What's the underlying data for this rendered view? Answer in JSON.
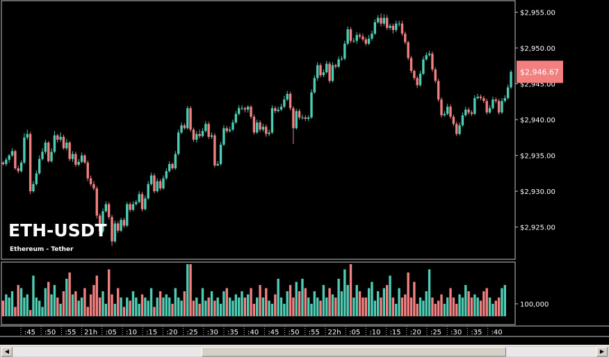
{
  "symbol": "ETH-USDT",
  "subtitle": "Ethereum - Tether",
  "colors": {
    "up": "#4ecdb4",
    "down": "#f28080",
    "frame": "#c8c8c8",
    "background": "#000000"
  },
  "chart_data": {
    "type": "candlestick",
    "price_axis": {
      "ticks": [
        "$2,955.00",
        "$2,950.00",
        "$2,945.00",
        "$2,940.00",
        "$2,935.00",
        "$2,930.00",
        "$2,925.00"
      ],
      "tick_values": [
        2955,
        2950,
        2945,
        2940,
        2935,
        2930,
        2925
      ],
      "ylim": [
        2920.6,
        2956.5
      ]
    },
    "last_price_label": "$2,946.67",
    "last_price": 2946.67,
    "volume_axis": {
      "ticks": [
        "100,000"
      ],
      "tick_values": [
        100000
      ]
    },
    "time_labels": [
      ":45",
      ":50",
      ":55",
      "21h",
      ":05",
      ":10",
      ":15",
      ":20",
      ":25",
      ":30",
      ":35",
      ":40",
      ":45",
      ":50",
      ":55",
      "22h",
      ":05",
      ":10",
      ":15",
      ":20",
      ":25",
      ":30",
      ":35",
      ":40"
    ],
    "ohlc": [
      [
        2934.0,
        2933.8,
        2934.2,
        2933.6
      ],
      [
        2933.8,
        2934.4,
        2934.7,
        2933.5
      ],
      [
        2934.4,
        2935.0,
        2935.2,
        2934.0
      ],
      [
        2935.0,
        2935.6,
        2936.0,
        2934.8
      ],
      [
        2935.6,
        2933.2,
        2935.8,
        2933.0
      ],
      [
        2933.2,
        2932.8,
        2933.6,
        2932.5
      ],
      [
        2932.8,
        2934.0,
        2934.3,
        2932.6
      ],
      [
        2934.0,
        2937.5,
        2938.1,
        2933.8
      ],
      [
        2937.5,
        2938.0,
        2938.6,
        2937.2
      ],
      [
        2938.0,
        2930.0,
        2938.3,
        2929.6
      ],
      [
        2930.0,
        2931.0,
        2931.4,
        2929.8
      ],
      [
        2931.0,
        2932.5,
        2932.9,
        2930.8
      ],
      [
        2932.5,
        2934.5,
        2935.0,
        2932.3
      ],
      [
        2934.5,
        2935.5,
        2936.0,
        2934.3
      ],
      [
        2935.5,
        2936.8,
        2937.2,
        2935.2
      ],
      [
        2936.8,
        2934.2,
        2937.0,
        2934.0
      ],
      [
        2934.2,
        2935.5,
        2936.0,
        2934.0
      ],
      [
        2935.5,
        2937.8,
        2938.4,
        2935.3
      ],
      [
        2937.8,
        2937.2,
        2938.0,
        2936.8
      ],
      [
        2937.2,
        2937.6,
        2938.2,
        2936.9
      ],
      [
        2937.6,
        2936.0,
        2937.9,
        2935.8
      ],
      [
        2936.0,
        2936.8,
        2937.3,
        2935.7
      ],
      [
        2936.8,
        2934.5,
        2937.0,
        2934.2
      ],
      [
        2934.5,
        2935.2,
        2935.6,
        2934.1
      ],
      [
        2935.2,
        2933.7,
        2935.5,
        2933.4
      ],
      [
        2933.7,
        2934.1,
        2934.5,
        2933.5
      ],
      [
        2934.1,
        2935.0,
        2935.4,
        2933.9
      ],
      [
        2935.0,
        2934.0,
        2935.2,
        2933.8
      ],
      [
        2934.0,
        2931.8,
        2934.3,
        2931.4
      ],
      [
        2931.8,
        2931.0,
        2932.2,
        2930.7
      ],
      [
        2931.0,
        2930.4,
        2931.4,
        2930.1
      ],
      [
        2930.4,
        2926.6,
        2930.7,
        2926.2
      ],
      [
        2926.6,
        2924.4,
        2926.9,
        2924.0
      ],
      [
        2924.4,
        2927.2,
        2927.6,
        2924.2
      ],
      [
        2927.2,
        2928.2,
        2928.6,
        2927.0
      ],
      [
        2928.2,
        2926.4,
        2928.5,
        2926.1
      ],
      [
        2926.4,
        2923.0,
        2926.7,
        2922.4
      ],
      [
        2923.0,
        2925.5,
        2925.9,
        2922.8
      ],
      [
        2925.5,
        2924.5,
        2925.8,
        2924.2
      ],
      [
        2924.5,
        2926.0,
        2926.3,
        2924.3
      ],
      [
        2926.0,
        2925.2,
        2926.3,
        2924.9
      ],
      [
        2925.2,
        2928.2,
        2928.5,
        2925.0
      ],
      [
        2928.2,
        2927.4,
        2928.5,
        2927.1
      ],
      [
        2927.4,
        2928.2,
        2928.6,
        2927.2
      ],
      [
        2928.2,
        2928.5,
        2928.8,
        2928.0
      ],
      [
        2928.5,
        2929.6,
        2930.0,
        2928.3
      ],
      [
        2929.6,
        2927.5,
        2929.9,
        2927.2
      ],
      [
        2927.5,
        2929.0,
        2929.4,
        2927.3
      ],
      [
        2929.0,
        2931.0,
        2931.4,
        2928.8
      ],
      [
        2931.0,
        2932.2,
        2932.6,
        2930.8
      ],
      [
        2932.2,
        2930.0,
        2932.5,
        2929.7
      ],
      [
        2930.0,
        2931.4,
        2931.8,
        2929.8
      ],
      [
        2931.4,
        2930.4,
        2931.7,
        2930.1
      ],
      [
        2930.4,
        2931.8,
        2932.2,
        2930.2
      ],
      [
        2931.8,
        2932.8,
        2933.2,
        2931.6
      ],
      [
        2932.8,
        2933.8,
        2934.2,
        2932.6
      ],
      [
        2933.8,
        2933.2,
        2934.0,
        2933.0
      ],
      [
        2933.2,
        2935.2,
        2935.6,
        2933.0
      ],
      [
        2935.2,
        2938.2,
        2938.6,
        2935.0
      ],
      [
        2938.2,
        2939.2,
        2939.6,
        2938.0
      ],
      [
        2939.2,
        2938.8,
        2939.5,
        2938.6
      ],
      [
        2938.8,
        2941.6,
        2941.9,
        2938.6
      ],
      [
        2941.6,
        2938.6,
        2941.9,
        2938.3
      ],
      [
        2938.6,
        2937.2,
        2938.9,
        2936.9
      ],
      [
        2937.2,
        2938.0,
        2938.4,
        2936.8
      ],
      [
        2938.0,
        2937.7,
        2938.6,
        2937.4
      ],
      [
        2937.7,
        2938.4,
        2938.8,
        2937.5
      ],
      [
        2938.4,
        2939.4,
        2939.8,
        2938.2
      ],
      [
        2939.4,
        2937.6,
        2939.7,
        2937.3
      ],
      [
        2937.6,
        2937.8,
        2938.2,
        2937.3
      ],
      [
        2937.8,
        2933.6,
        2938.1,
        2933.3
      ],
      [
        2933.6,
        2933.8,
        2934.2,
        2933.5
      ],
      [
        2933.8,
        2936.5,
        2936.9,
        2933.6
      ],
      [
        2936.5,
        2938.8,
        2939.2,
        2936.3
      ],
      [
        2938.8,
        2938.4,
        2939.1,
        2938.1
      ],
      [
        2938.4,
        2938.6,
        2939.0,
        2938.2
      ],
      [
        2938.6,
        2939.6,
        2940.0,
        2938.4
      ],
      [
        2939.6,
        2940.8,
        2941.2,
        2939.4
      ],
      [
        2940.8,
        2941.6,
        2942.0,
        2940.6
      ],
      [
        2941.6,
        2941.6,
        2942.0,
        2941.3
      ],
      [
        2941.6,
        2941.4,
        2941.8,
        2941.0
      ],
      [
        2941.4,
        2941.8,
        2942.0,
        2941.0
      ],
      [
        2941.8,
        2940.4,
        2942.0,
        2940.1
      ],
      [
        2940.4,
        2938.2,
        2940.7,
        2937.9
      ],
      [
        2938.2,
        2939.6,
        2940.0,
        2938.0
      ],
      [
        2939.6,
        2938.6,
        2939.9,
        2938.3
      ],
      [
        2938.6,
        2939.0,
        2939.4,
        2938.3
      ],
      [
        2939.0,
        2938.0,
        2939.3,
        2937.6
      ],
      [
        2938.0,
        2938.2,
        2938.6,
        2937.7
      ],
      [
        2938.2,
        2941.6,
        2942.0,
        2938.0
      ],
      [
        2941.6,
        2941.2,
        2941.9,
        2940.9
      ],
      [
        2941.2,
        2941.4,
        2941.8,
        2941.0
      ],
      [
        2941.4,
        2941.8,
        2942.2,
        2941.2
      ],
      [
        2941.8,
        2942.8,
        2943.3,
        2941.6
      ],
      [
        2942.8,
        2943.6,
        2944.0,
        2942.6
      ],
      [
        2943.6,
        2941.6,
        2943.9,
        2941.3
      ],
      [
        2941.6,
        2938.8,
        2941.9,
        2936.6
      ],
      [
        2938.8,
        2941.2,
        2941.5,
        2938.6
      ],
      [
        2941.2,
        2940.3,
        2941.5,
        2940.0
      ],
      [
        2940.3,
        2940.3,
        2940.7,
        2940.0
      ],
      [
        2940.3,
        2940.1,
        2940.6,
        2939.8
      ],
      [
        2940.1,
        2940.3,
        2940.6,
        2939.8
      ],
      [
        2940.3,
        2943.8,
        2944.2,
        2940.1
      ],
      [
        2943.8,
        2945.8,
        2946.2,
        2943.6
      ],
      [
        2945.8,
        2947.6,
        2948.0,
        2945.4
      ],
      [
        2947.6,
        2946.2,
        2947.9,
        2945.9
      ],
      [
        2946.2,
        2946.6,
        2947.0,
        2945.9
      ],
      [
        2946.6,
        2947.8,
        2948.2,
        2946.4
      ],
      [
        2947.8,
        2945.4,
        2948.1,
        2945.1
      ],
      [
        2945.4,
        2947.6,
        2948.0,
        2945.2
      ],
      [
        2947.6,
        2947.4,
        2947.8,
        2947.1
      ],
      [
        2947.4,
        2948.4,
        2948.8,
        2947.2
      ],
      [
        2948.4,
        2948.5,
        2948.9,
        2948.2
      ],
      [
        2948.5,
        2950.6,
        2951.0,
        2948.3
      ],
      [
        2950.6,
        2952.6,
        2953.0,
        2950.4
      ],
      [
        2952.6,
        2951.0,
        2952.9,
        2950.7
      ],
      [
        2951.0,
        2951.0,
        2951.4,
        2950.7
      ],
      [
        2951.0,
        2951.8,
        2952.2,
        2950.6
      ],
      [
        2951.8,
        2951.6,
        2952.1,
        2951.3
      ],
      [
        2951.6,
        2951.2,
        2952.0,
        2950.9
      ],
      [
        2951.2,
        2950.6,
        2951.5,
        2950.3
      ],
      [
        2950.6,
        2951.3,
        2951.8,
        2950.4
      ],
      [
        2951.3,
        2952.0,
        2952.4,
        2951.0
      ],
      [
        2952.0,
        2953.6,
        2954.0,
        2951.8
      ],
      [
        2953.6,
        2954.2,
        2954.6,
        2953.4
      ],
      [
        2954.2,
        2953.4,
        2954.8,
        2953.0
      ],
      [
        2953.4,
        2954.2,
        2954.7,
        2953.1
      ],
      [
        2954.2,
        2952.8,
        2954.6,
        2952.5
      ],
      [
        2952.8,
        2953.1,
        2953.4,
        2952.5
      ],
      [
        2953.1,
        2952.5,
        2953.4,
        2952.0
      ],
      [
        2952.5,
        2953.4,
        2953.8,
        2952.2
      ],
      [
        2953.4,
        2953.4,
        2953.8,
        2953.0
      ],
      [
        2953.4,
        2952.0,
        2953.8,
        2951.7
      ],
      [
        2952.0,
        2950.8,
        2952.3,
        2950.5
      ],
      [
        2950.8,
        2948.6,
        2951.0,
        2948.3
      ],
      [
        2948.6,
        2946.8,
        2948.9,
        2946.5
      ],
      [
        2946.8,
        2945.8,
        2947.0,
        2945.5
      ],
      [
        2945.8,
        2944.8,
        2946.1,
        2944.4
      ],
      [
        2944.8,
        2946.4,
        2946.8,
        2944.6
      ],
      [
        2946.4,
        2948.4,
        2948.8,
        2946.2
      ],
      [
        2948.4,
        2949.0,
        2949.4,
        2948.2
      ],
      [
        2949.0,
        2949.2,
        2949.6,
        2948.8
      ],
      [
        2949.2,
        2947.0,
        2949.5,
        2946.7
      ],
      [
        2947.0,
        2945.4,
        2947.3,
        2945.1
      ],
      [
        2945.4,
        2942.8,
        2945.7,
        2942.5
      ],
      [
        2942.8,
        2940.6,
        2943.1,
        2940.3
      ],
      [
        2940.6,
        2940.8,
        2941.2,
        2940.4
      ],
      [
        2940.8,
        2941.8,
        2942.2,
        2940.6
      ],
      [
        2941.8,
        2940.4,
        2942.1,
        2940.1
      ],
      [
        2940.4,
        2939.4,
        2940.7,
        2939.1
      ],
      [
        2939.4,
        2938.0,
        2939.7,
        2937.7
      ],
      [
        2938.0,
        2939.2,
        2939.6,
        2937.8
      ],
      [
        2939.2,
        2940.6,
        2941.0,
        2939.0
      ],
      [
        2940.6,
        2941.4,
        2941.8,
        2940.4
      ],
      [
        2941.4,
        2941.0,
        2941.7,
        2940.7
      ],
      [
        2941.0,
        2940.8,
        2941.3,
        2940.5
      ],
      [
        2940.8,
        2943.0,
        2943.4,
        2940.6
      ],
      [
        2943.0,
        2943.2,
        2943.6,
        2942.8
      ],
      [
        2943.2,
        2943.0,
        2943.5,
        2942.7
      ],
      [
        2943.0,
        2942.6,
        2943.3,
        2942.3
      ],
      [
        2942.6,
        2941.0,
        2942.9,
        2940.7
      ],
      [
        2941.0,
        2941.6,
        2942.0,
        2940.8
      ],
      [
        2941.6,
        2942.8,
        2943.2,
        2941.4
      ],
      [
        2942.8,
        2942.6,
        2943.1,
        2942.3
      ],
      [
        2942.6,
        2941.0,
        2942.9,
        2940.7
      ],
      [
        2941.0,
        2942.6,
        2943.0,
        2940.8
      ],
      [
        2942.6,
        2943.0,
        2943.4,
        2942.4
      ],
      [
        2943.0,
        2944.5,
        2944.9,
        2942.8
      ],
      [
        2944.5,
        2946.67,
        2946.9,
        2944.3
      ]
    ],
    "volume": [
      102000,
      106000,
      104000,
      108000,
      98000,
      112000,
      110000,
      104000,
      106000,
      96000,
      118000,
      104000,
      102000,
      98000,
      110000,
      114000,
      106000,
      112000,
      104000,
      100000,
      108000,
      116000,
      120000,
      106000,
      108000,
      102000,
      104000,
      110000,
      98000,
      106000,
      112000,
      118000,
      104000,
      108000,
      100000,
      122000,
      106000,
      100000,
      110000,
      104000,
      98000,
      104000,
      102000,
      108000,
      104000,
      100000,
      106000,
      104000,
      102000,
      110000,
      98000,
      104000,
      108000,
      104000,
      106000,
      104000,
      100000,
      110000,
      104000,
      102000,
      108000,
      130000,
      138000,
      102000,
      104000,
      100000,
      110000,
      102000,
      104000,
      108000,
      102000,
      104000,
      100000,
      108000,
      110000,
      104000,
      102000,
      106000,
      104000,
      108000,
      104000,
      106000,
      110000,
      100000,
      104000,
      112000,
      104000,
      110000,
      102000,
      100000,
      106000,
      116000,
      104000,
      100000,
      108000,
      112000,
      104000,
      114000,
      108000,
      116000,
      110000,
      104000,
      100000,
      108000,
      104000,
      102000,
      112000,
      104000,
      110000,
      106000,
      104000,
      116000,
      108000,
      122000,
      112000,
      136000,
      104000,
      112000,
      108000,
      104000,
      104000,
      110000,
      114000,
      102000,
      108000,
      104000,
      110000,
      112000,
      118000,
      104000,
      100000,
      110000,
      104000,
      106000,
      120000,
      104000,
      114000,
      100000,
      104000,
      102000,
      108000,
      122000,
      104000,
      100000,
      102000,
      106000,
      100000,
      104000,
      110000,
      104000,
      100000,
      106000,
      104000,
      112000,
      108000,
      104000,
      106000,
      104000,
      102000,
      108000,
      110000,
      104000,
      100000,
      102000,
      104000,
      110000,
      112000
    ]
  }
}
